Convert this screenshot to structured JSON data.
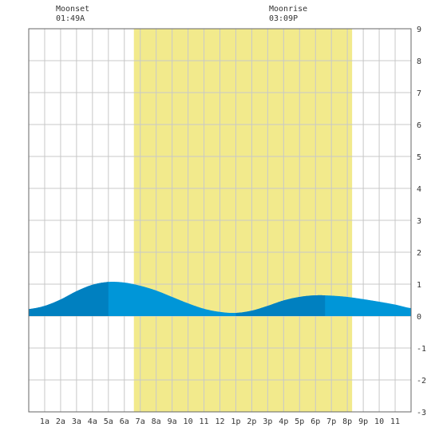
{
  "moon": {
    "moonset": {
      "label": "Moonset",
      "time": "01:49A",
      "hour": 1.82
    },
    "moonrise": {
      "label": "Moonrise",
      "time": "03:09P",
      "hour": 15.15
    }
  },
  "chart_data": {
    "type": "area",
    "title": "",
    "xlabel": "",
    "ylabel": "",
    "xlim": [
      0,
      24
    ],
    "ylim": [
      -3,
      9
    ],
    "grid": true,
    "x_tick_labels": [
      "1a",
      "2a",
      "3a",
      "4a",
      "5a",
      "6a",
      "7a",
      "8a",
      "9a",
      "10",
      "11",
      "12",
      "1p",
      "2p",
      "3p",
      "4p",
      "5p",
      "6p",
      "7p",
      "8p",
      "9p",
      "10",
      "11"
    ],
    "y_tick_labels": [
      "9",
      "8",
      "7",
      "6",
      "5",
      "4",
      "3",
      "2",
      "1",
      "0",
      "-1",
      "-2",
      "-3"
    ],
    "daylight": {
      "start_hour": 6.6,
      "end_hour": 20.3
    },
    "tide_series": {
      "x": [
        0,
        1,
        2,
        3,
        4,
        5,
        6,
        7,
        8,
        9,
        10,
        11,
        12,
        13,
        14,
        15,
        16,
        17,
        18,
        19,
        20,
        21,
        22,
        23,
        24
      ],
      "y": [
        0.22,
        0.32,
        0.52,
        0.78,
        0.98,
        1.07,
        1.05,
        0.95,
        0.8,
        0.6,
        0.4,
        0.23,
        0.13,
        0.1,
        0.17,
        0.32,
        0.49,
        0.6,
        0.65,
        0.64,
        0.6,
        0.53,
        0.45,
        0.36,
        0.25
      ]
    },
    "rising_segments": [
      [
        0,
        5
      ],
      [
        13,
        18.6
      ]
    ],
    "colors": {
      "daylight": "#f2ea8c",
      "tide_rising": "#0080c0",
      "tide_falling": "#0096d8",
      "grid": "#c8c8c8",
      "frame": "#666666"
    }
  }
}
